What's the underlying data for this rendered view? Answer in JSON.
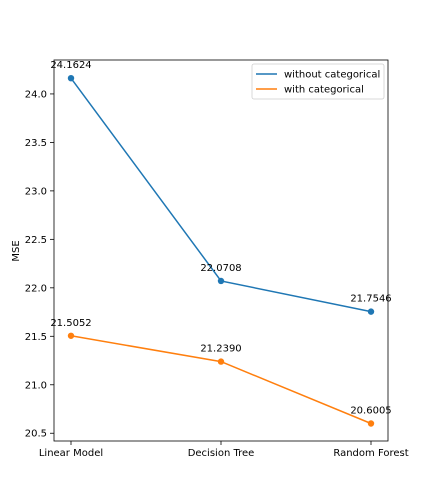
{
  "chart_data": {
    "type": "line",
    "title": "",
    "xlabel": "",
    "ylabel": "MSE",
    "categories": [
      "Linear Model",
      "Decision Tree",
      "Random Forest"
    ],
    "ylim": [
      20.42,
      24.35
    ],
    "yticks": [
      "20.5",
      "21.0",
      "21.5",
      "22.0",
      "22.5",
      "23.0",
      "23.5",
      "24.0"
    ],
    "grid": false,
    "legend_position": "top-right",
    "series": [
      {
        "name": "without categorical",
        "color": "#1f77b4",
        "values": [
          24.1624,
          22.0708,
          21.7546
        ],
        "labels": [
          "24.1624",
          "22.0708",
          "21.7546"
        ]
      },
      {
        "name": "with categorical",
        "color": "#ff7f0e",
        "values": [
          21.5052,
          21.239,
          20.6005
        ],
        "labels": [
          "21.5052",
          "21.2390",
          "20.6005"
        ]
      }
    ]
  }
}
